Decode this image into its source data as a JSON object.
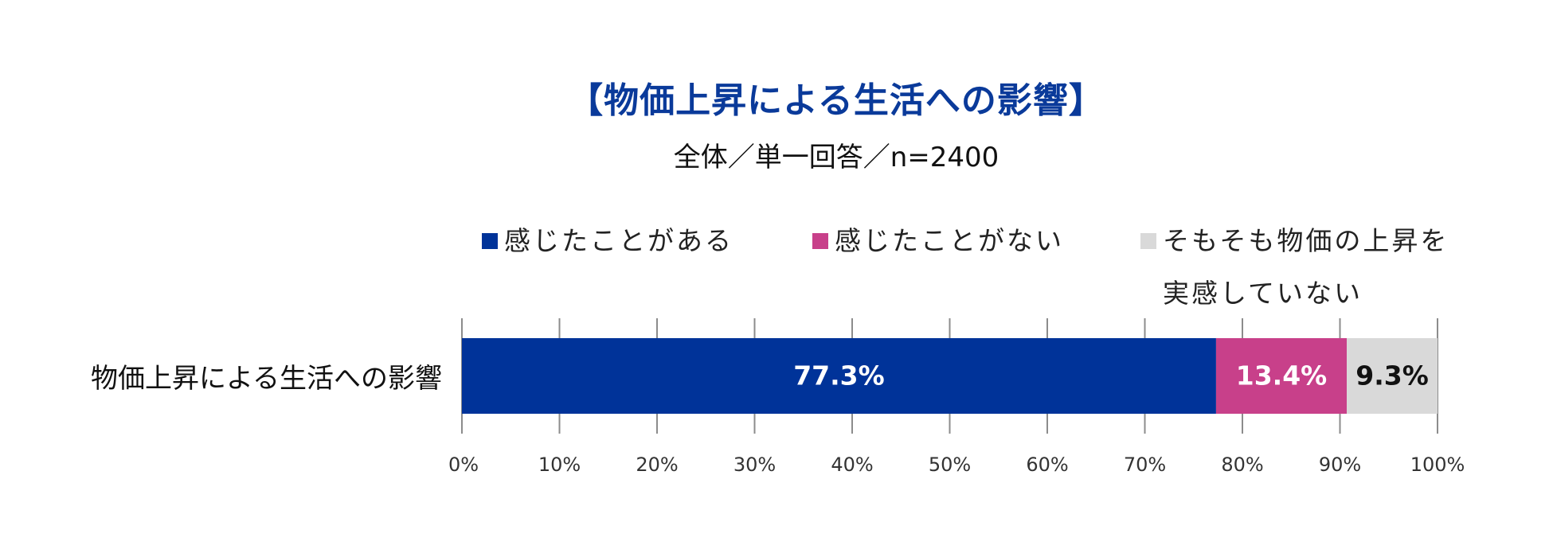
{
  "chart_data": {
    "type": "bar",
    "orientation": "horizontal",
    "stacked": true,
    "title": "【物価上昇による生活への影響】",
    "subtitle": "全体／単一回答／n=2400",
    "categories": [
      "物価上昇による生活への影響"
    ],
    "series": [
      {
        "name": "感じたことがある",
        "values": [
          77.3
        ],
        "color": "#003399",
        "label": "77.3%",
        "label_color": "#ffffff"
      },
      {
        "name": "感じたことがない",
        "values": [
          13.4
        ],
        "color": "#c8408a",
        "label": "13.4%",
        "label_color": "#ffffff"
      },
      {
        "name": "そもそも物価の上昇を実感していない",
        "values": [
          9.3
        ],
        "color": "#d9d9d9",
        "label": "9.3%",
        "label_color": "#111111"
      }
    ],
    "xlim": [
      0,
      100
    ],
    "xticks": [
      "0%",
      "10%",
      "20%",
      "30%",
      "40%",
      "50%",
      "60%",
      "70%",
      "80%",
      "90%",
      "100%"
    ],
    "legend_position": "top",
    "grid": false
  }
}
